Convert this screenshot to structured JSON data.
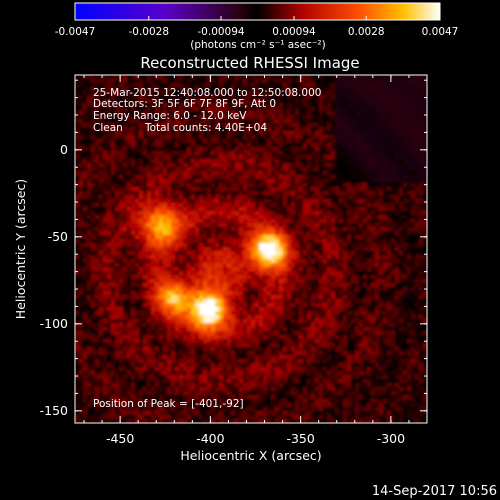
{
  "colorbar": {
    "ticks": [
      "-0.0047",
      "-0.0028",
      "-0.00094",
      "0.00094",
      "0.0028",
      "0.0047"
    ],
    "range": [
      -0.0047,
      0.0047
    ],
    "unit_label": "(photons cm⁻² s⁻¹ asec⁻²)"
  },
  "chart_data": {
    "type": "heatmap",
    "title": "Reconstructed RHESSI Image",
    "xlabel": "Heliocentric X (arcsec)",
    "ylabel": "Heliocentric Y (arcsec)",
    "xlim": [
      -475,
      -280
    ],
    "ylim": [
      -157,
      43
    ],
    "x_ticks": [
      -450,
      -400,
      -350,
      -300
    ],
    "y_ticks": [
      0,
      -50,
      -100,
      -150
    ],
    "x_tick_labels": [
      "-450",
      "-400",
      "-350",
      "-300"
    ],
    "y_tick_labels": [
      "0",
      "-50",
      "-100",
      "-150"
    ],
    "sources": [
      {
        "x": -401,
        "y": -92,
        "peak": 0.0047
      },
      {
        "x": -368,
        "y": -58,
        "peak": 0.0044
      },
      {
        "x": -428,
        "y": -43,
        "peak": 0.003
      },
      {
        "x": -420,
        "y": -85,
        "peak": 0.0028
      }
    ],
    "background_level": 0.0012,
    "annotations": {
      "time": "25-Mar-2015 12:40:08.000 to 12:50:08.000",
      "detectors": "Detectors: 3F 5F 6F 7F 8F 9F, Att 0",
      "energy": "Energy Range: 6.0 - 12.0 keV",
      "method": "Clean",
      "counts": "Total counts: 4.40E+04",
      "peak": "Position of Peak = [-401,-92]"
    }
  },
  "footer": {
    "date": "14-Sep-2017 10:56"
  }
}
